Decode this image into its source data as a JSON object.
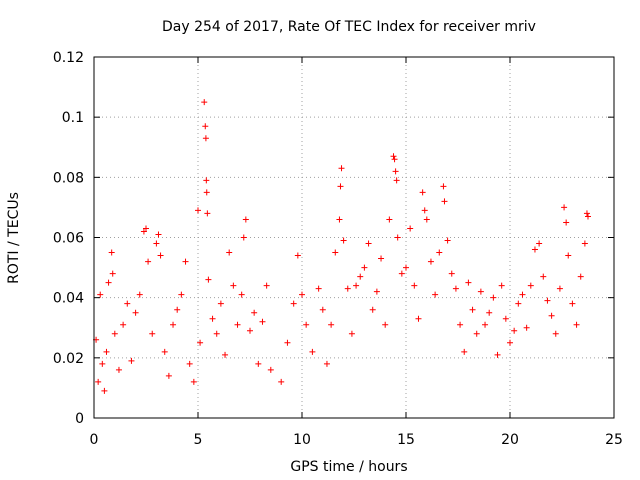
{
  "chart_data": {
    "type": "scatter",
    "title": "Day 254 of 2017, Rate Of TEC Index for receiver mriv",
    "xlabel": "GPS time / hours",
    "ylabel": "ROTI / TECUs",
    "xlim": [
      0,
      25
    ],
    "ylim": [
      0,
      0.12
    ],
    "xticks": [
      0,
      5,
      10,
      15,
      20,
      25
    ],
    "xtick_labels": [
      "0",
      "5",
      "10",
      "15",
      "20",
      "25"
    ],
    "yticks": [
      0,
      0.02,
      0.04,
      0.06,
      0.08,
      0.1,
      0.12
    ],
    "ytick_labels": [
      "0",
      "0.02",
      "0.04",
      "0.06",
      "0.08",
      "0.1",
      "0.12"
    ],
    "grid": true,
    "marker": "+",
    "color": "#ff0000",
    "series": [
      {
        "name": "ROTI",
        "points": [
          [
            0.1,
            0.026
          ],
          [
            0.2,
            0.012
          ],
          [
            0.3,
            0.041
          ],
          [
            0.4,
            0.018
          ],
          [
            0.5,
            0.009
          ],
          [
            0.6,
            0.022
          ],
          [
            0.7,
            0.045
          ],
          [
            0.85,
            0.055
          ],
          [
            0.9,
            0.048
          ],
          [
            1.0,
            0.028
          ],
          [
            1.2,
            0.016
          ],
          [
            1.4,
            0.031
          ],
          [
            1.6,
            0.038
          ],
          [
            1.8,
            0.019
          ],
          [
            2.0,
            0.035
          ],
          [
            2.2,
            0.041
          ],
          [
            2.4,
            0.062
          ],
          [
            2.5,
            0.063
          ],
          [
            2.6,
            0.052
          ],
          [
            2.8,
            0.028
          ],
          [
            3.0,
            0.058
          ],
          [
            3.1,
            0.061
          ],
          [
            3.2,
            0.054
          ],
          [
            3.4,
            0.022
          ],
          [
            3.6,
            0.014
          ],
          [
            3.8,
            0.031
          ],
          [
            4.0,
            0.036
          ],
          [
            4.2,
            0.041
          ],
          [
            4.4,
            0.052
          ],
          [
            4.6,
            0.018
          ],
          [
            4.8,
            0.012
          ],
          [
            5.0,
            0.069
          ],
          [
            5.1,
            0.025
          ],
          [
            5.3,
            0.105
          ],
          [
            5.35,
            0.097
          ],
          [
            5.38,
            0.093
          ],
          [
            5.4,
            0.079
          ],
          [
            5.42,
            0.075
          ],
          [
            5.45,
            0.068
          ],
          [
            5.5,
            0.046
          ],
          [
            5.7,
            0.033
          ],
          [
            5.9,
            0.028
          ],
          [
            6.1,
            0.038
          ],
          [
            6.3,
            0.021
          ],
          [
            6.5,
            0.055
          ],
          [
            6.7,
            0.044
          ],
          [
            6.9,
            0.031
          ],
          [
            7.1,
            0.041
          ],
          [
            7.2,
            0.06
          ],
          [
            7.3,
            0.066
          ],
          [
            7.5,
            0.029
          ],
          [
            7.7,
            0.035
          ],
          [
            7.9,
            0.018
          ],
          [
            8.1,
            0.032
          ],
          [
            8.3,
            0.044
          ],
          [
            8.5,
            0.016
          ],
          [
            9.0,
            0.012
          ],
          [
            9.3,
            0.025
          ],
          [
            9.6,
            0.038
          ],
          [
            9.8,
            0.054
          ],
          [
            10.0,
            0.041
          ],
          [
            10.2,
            0.031
          ],
          [
            10.5,
            0.022
          ],
          [
            10.8,
            0.043
          ],
          [
            11.0,
            0.036
          ],
          [
            11.2,
            0.018
          ],
          [
            11.4,
            0.031
          ],
          [
            11.6,
            0.055
          ],
          [
            11.8,
            0.066
          ],
          [
            11.85,
            0.077
          ],
          [
            11.9,
            0.083
          ],
          [
            12.0,
            0.059
          ],
          [
            12.2,
            0.043
          ],
          [
            12.4,
            0.028
          ],
          [
            12.6,
            0.044
          ],
          [
            12.8,
            0.047
          ],
          [
            13.0,
            0.05
          ],
          [
            13.2,
            0.058
          ],
          [
            13.4,
            0.036
          ],
          [
            13.6,
            0.042
          ],
          [
            13.8,
            0.053
          ],
          [
            14.0,
            0.031
          ],
          [
            14.2,
            0.066
          ],
          [
            14.4,
            0.087
          ],
          [
            14.45,
            0.086
          ],
          [
            14.5,
            0.082
          ],
          [
            14.55,
            0.079
          ],
          [
            14.6,
            0.06
          ],
          [
            14.8,
            0.048
          ],
          [
            15.0,
            0.05
          ],
          [
            15.2,
            0.063
          ],
          [
            15.4,
            0.044
          ],
          [
            15.6,
            0.033
          ],
          [
            15.8,
            0.075
          ],
          [
            15.9,
            0.069
          ],
          [
            16.0,
            0.066
          ],
          [
            16.2,
            0.052
          ],
          [
            16.4,
            0.041
          ],
          [
            16.6,
            0.055
          ],
          [
            16.8,
            0.077
          ],
          [
            16.85,
            0.072
          ],
          [
            17.0,
            0.059
          ],
          [
            17.2,
            0.048
          ],
          [
            17.4,
            0.043
          ],
          [
            17.6,
            0.031
          ],
          [
            17.8,
            0.022
          ],
          [
            18.0,
            0.045
          ],
          [
            18.2,
            0.036
          ],
          [
            18.4,
            0.028
          ],
          [
            18.6,
            0.042
          ],
          [
            18.8,
            0.031
          ],
          [
            19.0,
            0.035
          ],
          [
            19.2,
            0.04
          ],
          [
            19.4,
            0.021
          ],
          [
            19.6,
            0.044
          ],
          [
            19.8,
            0.033
          ],
          [
            20.0,
            0.025
          ],
          [
            20.2,
            0.029
          ],
          [
            20.4,
            0.038
          ],
          [
            20.6,
            0.041
          ],
          [
            20.8,
            0.03
          ],
          [
            21.0,
            0.044
          ],
          [
            21.2,
            0.056
          ],
          [
            21.4,
            0.058
          ],
          [
            21.6,
            0.047
          ],
          [
            21.8,
            0.039
          ],
          [
            22.0,
            0.034
          ],
          [
            22.2,
            0.028
          ],
          [
            22.4,
            0.043
          ],
          [
            22.6,
            0.07
          ],
          [
            22.7,
            0.065
          ],
          [
            22.8,
            0.054
          ],
          [
            23.0,
            0.038
          ],
          [
            23.2,
            0.031
          ],
          [
            23.4,
            0.047
          ],
          [
            23.6,
            0.058
          ],
          [
            23.7,
            0.068
          ],
          [
            23.75,
            0.067
          ]
        ]
      }
    ]
  }
}
